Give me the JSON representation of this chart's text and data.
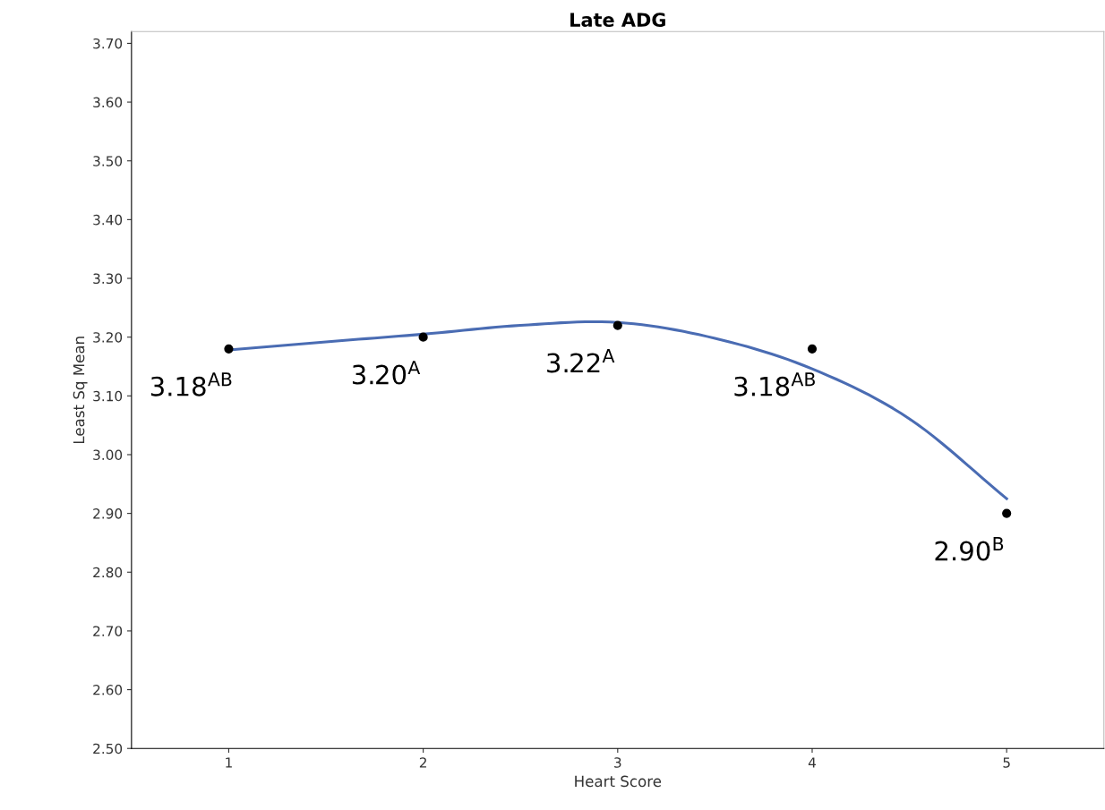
{
  "chart_data": {
    "type": "scatter",
    "title": "Late ADG",
    "xlabel": "Heart Score",
    "ylabel": "Least Sq Mean",
    "x": [
      1,
      2,
      3,
      4,
      5
    ],
    "series": [
      {
        "color": "#000000",
        "marker": "circle",
        "values": [
          3.18,
          3.2,
          3.22,
          3.18,
          2.9
        ],
        "value_labels": [
          "3.18$^{AB}$",
          "3.20$^{A}$",
          "3.22$^{A}$",
          "3.18$^{AB}$",
          "2.90$^{B}$"
        ]
      },
      {
        "type": "line",
        "color": "#4a6cb3",
        "marker": "none",
        "line_style": "solid",
        "x": [
          1,
          1.5,
          2,
          2.5,
          3,
          3.5,
          4,
          4.5,
          5
        ],
        "values": [
          3.178,
          3.192,
          3.205,
          3.22,
          3.225,
          3.198,
          3.146,
          3.061,
          2.925
        ]
      }
    ],
    "xlim": [
      0.5,
      5.5
    ],
    "xticks": [
      1,
      2,
      3,
      4,
      5
    ],
    "ylim": [
      2.5,
      3.72
    ],
    "yticks": [
      {
        "value": 2.5,
        "label": "2.50"
      },
      {
        "value": 2.6,
        "label": "2.60"
      },
      {
        "value": 2.7,
        "label": "2.70"
      },
      {
        "value": 2.8,
        "label": "2.80"
      },
      {
        "value": 2.9,
        "label": "2.90"
      },
      {
        "value": 3.0,
        "label": "3.00"
      },
      {
        "value": 3.1,
        "label": "3.10"
      },
      {
        "value": 3.2,
        "label": "3.20"
      },
      {
        "value": 3.3,
        "label": "3.30"
      },
      {
        "value": 3.4,
        "label": "3.40"
      },
      {
        "value": 3.5,
        "label": "3.50"
      },
      {
        "value": 3.6,
        "label": "3.60"
      },
      {
        "value": 3.7,
        "label": "3.70"
      }
    ],
    "grid": false,
    "legend": false
  }
}
